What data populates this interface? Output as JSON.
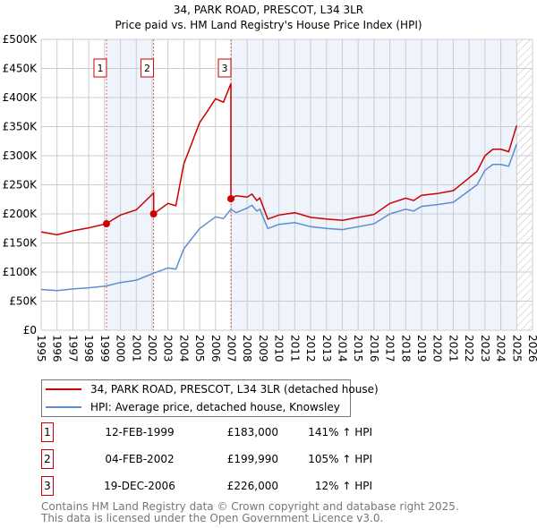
{
  "chart_data": {
    "type": "line",
    "title": "34, PARK ROAD, PRESCOT, L34 3LR",
    "subtitle": "Price paid vs. HM Land Registry's House Price Index (HPI)",
    "xlim": [
      1995,
      2026
    ],
    "ylim": [
      0,
      500000
    ],
    "x_ticks": [
      "1995",
      "1996",
      "1997",
      "1998",
      "1999",
      "2000",
      "2001",
      "2002",
      "2003",
      "2004",
      "2005",
      "2006",
      "2007",
      "2008",
      "2009",
      "2010",
      "2011",
      "2012",
      "2013",
      "2014",
      "2015",
      "2016",
      "2017",
      "2018",
      "2019",
      "2020",
      "2021",
      "2022",
      "2023",
      "2024",
      "2025",
      "2026"
    ],
    "y_ticks": [
      {
        "v": 0,
        "label": "£0"
      },
      {
        "v": 50000,
        "label": "£50K"
      },
      {
        "v": 100000,
        "label": "£100K"
      },
      {
        "v": 150000,
        "label": "£150K"
      },
      {
        "v": 200000,
        "label": "£200K"
      },
      {
        "v": 250000,
        "label": "£250K"
      },
      {
        "v": 300000,
        "label": "£300K"
      },
      {
        "v": 350000,
        "label": "£350K"
      },
      {
        "v": 400000,
        "label": "£400K"
      },
      {
        "v": 450000,
        "label": "£450K"
      },
      {
        "v": 500000,
        "label": "£500K"
      }
    ],
    "grid": true,
    "series": [
      {
        "name": "34, PARK ROAD, PRESCOT, L34 3LR (detached house)",
        "color": "#cc0000",
        "x": [
          1995,
          1996,
          1997,
          1998,
          1999.1,
          2000,
          2001,
          2002.1,
          2002.1,
          2003,
          2003.5,
          2004,
          2005,
          2005.5,
          2006,
          2006.5,
          2006.97,
          2006.97,
          2007.3,
          2008,
          2008.3,
          2008.6,
          2008.8,
          2009.3,
          2010,
          2011,
          2012,
          2013,
          2014,
          2015,
          2016,
          2017,
          2018,
          2018.5,
          2019,
          2020,
          2021,
          2022,
          2022.5,
          2023,
          2023.5,
          2024,
          2024.5,
          2025
        ],
        "y": [
          169000,
          164000,
          171000,
          176000,
          183000,
          198000,
          207000,
          236000,
          199990,
          218000,
          214000,
          286000,
          357000,
          377000,
          398000,
          392000,
          424000,
          226000,
          231000,
          229000,
          234000,
          223000,
          227000,
          191000,
          198000,
          202000,
          194000,
          191000,
          189000,
          194000,
          199000,
          218000,
          227000,
          223000,
          232000,
          235000,
          240000,
          262000,
          273000,
          300000,
          311000,
          311000,
          307000,
          352000
        ]
      },
      {
        "name": "HPI: Average price, detached house, Knowsley",
        "color": "#5b8fd0",
        "x": [
          1995,
          1996,
          1997,
          1998,
          1999.1,
          2000,
          2001,
          2002.1,
          2003,
          2003.5,
          2004,
          2005,
          2005.5,
          2006,
          2006.5,
          2006.97,
          2007.3,
          2008,
          2008.3,
          2008.6,
          2008.8,
          2009.3,
          2010,
          2011,
          2012,
          2013,
          2014,
          2015,
          2016,
          2017,
          2018,
          2018.5,
          2019,
          2020,
          2021,
          2022,
          2022.5,
          2023,
          2023.5,
          2024,
          2024.5,
          2025
        ],
        "y": [
          70000,
          68000,
          71000,
          73000,
          76000,
          82000,
          86000,
          98000,
          107000,
          105000,
          140000,
          175000,
          185000,
          195000,
          192000,
          208000,
          202000,
          210000,
          215000,
          205000,
          208000,
          175000,
          182000,
          185000,
          178000,
          175000,
          173000,
          178000,
          183000,
          200000,
          208000,
          205000,
          213000,
          216000,
          220000,
          240000,
          250000,
          275000,
          285000,
          285000,
          282000,
          320000
        ]
      }
    ],
    "sales": [
      {
        "n": "1",
        "x": 1999.12,
        "y": 183000,
        "date": "12-FEB-1999",
        "price": "£183,000",
        "pct": "141% ↑ HPI"
      },
      {
        "n": "2",
        "x": 2002.09,
        "y": 199990,
        "date": "04-FEB-2002",
        "price": "£199,990",
        "pct": "105% ↑ HPI"
      },
      {
        "n": "3",
        "x": 2006.97,
        "y": 226000,
        "date": "19-DEC-2006",
        "price": "£226,000",
        "pct": "12% ↑ HPI"
      }
    ],
    "forecast_hatch_from": 2025,
    "legend_position": "below"
  },
  "footer": {
    "line1": "Contains HM Land Registry data © Crown copyright and database right 2025.",
    "line2": "This data is licensed under the Open Government Licence v3.0."
  }
}
